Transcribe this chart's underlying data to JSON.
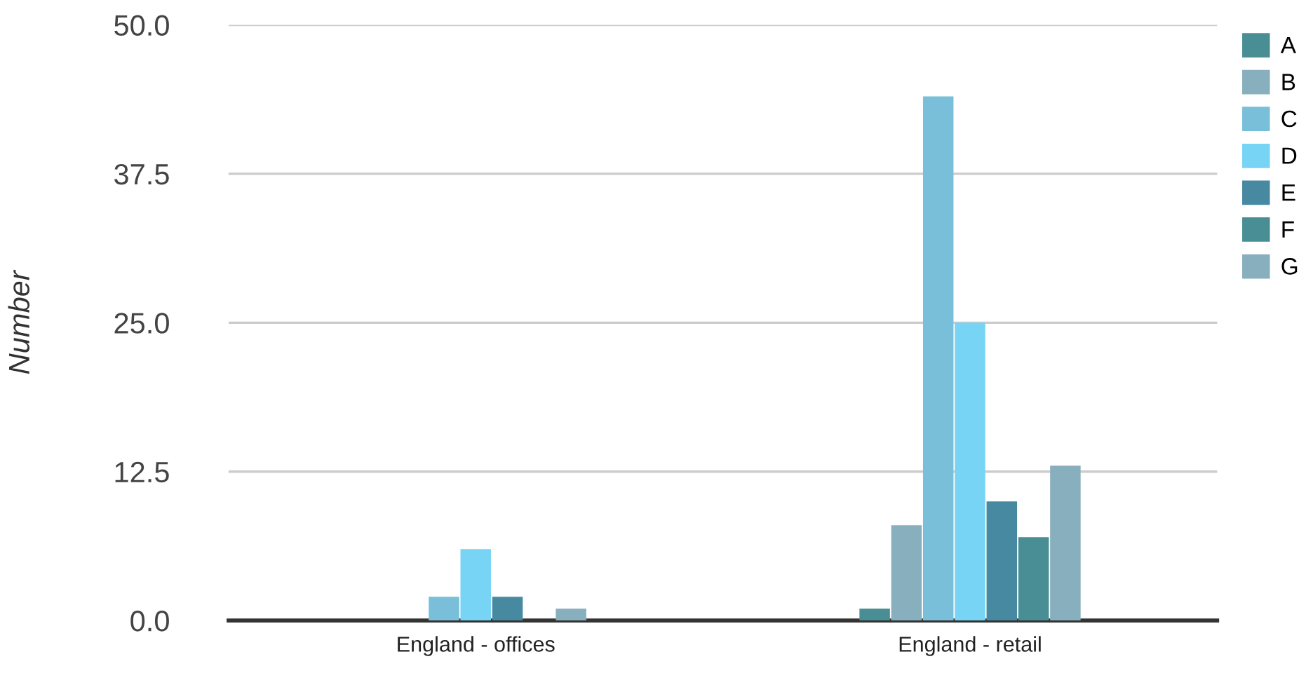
{
  "chart_data": {
    "type": "bar",
    "ylabel": "Number",
    "categories": [
      "England - offices",
      "England - retail"
    ],
    "series": [
      {
        "name": "A",
        "color": "#488e94",
        "values": [
          0,
          1
        ]
      },
      {
        "name": "B",
        "color": "#88afbd",
        "values": [
          0,
          8
        ]
      },
      {
        "name": "C",
        "color": "#79bfd9",
        "values": [
          2,
          44
        ]
      },
      {
        "name": "D",
        "color": "#77d4f5",
        "values": [
          6,
          25
        ]
      },
      {
        "name": "E",
        "color": "#4889a2",
        "values": [
          2,
          10
        ]
      },
      {
        "name": "F",
        "color": "#488e94",
        "values": [
          0,
          7
        ]
      },
      {
        "name": "G",
        "color": "#88afbd",
        "values": [
          1,
          13
        ]
      }
    ],
    "ylim": [
      0,
      50
    ],
    "yticks": [
      {
        "value": 0,
        "label": "0.0"
      },
      {
        "value": 12.5,
        "label": "12.5"
      },
      {
        "value": 25,
        "label": "25.0"
      },
      {
        "value": 37.5,
        "label": "37.5"
      },
      {
        "value": 50,
        "label": "50.0"
      }
    ],
    "grid": "y",
    "legend": "top right"
  }
}
